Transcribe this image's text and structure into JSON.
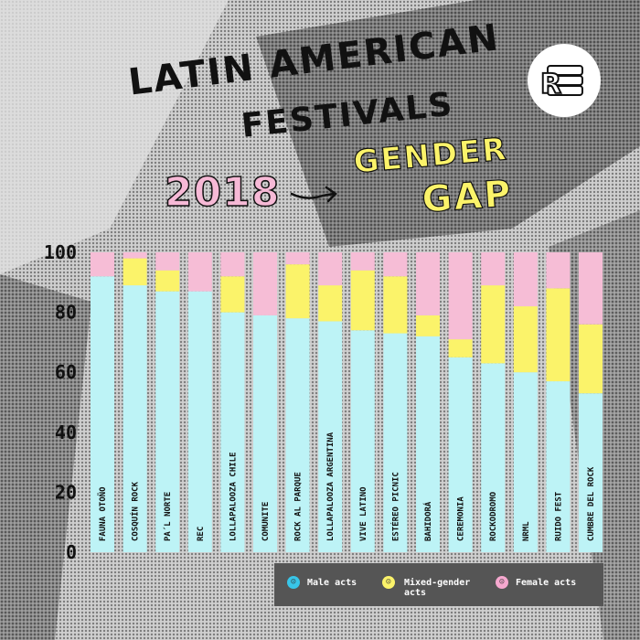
{
  "title": {
    "line1": "LATIN AMERICAN",
    "line2": "FESTIVALS",
    "year": "2018",
    "subtitle_line1": "GENDER",
    "subtitle_line2": "GAP"
  },
  "logo": {
    "icon": "r-sponge-logo-icon",
    "letter": "R"
  },
  "colors": {
    "male": "#bdf3f6",
    "mixed": "#fbf36a",
    "female": "#f6bdd6",
    "legend_bg": "#555555"
  },
  "legend": {
    "male": "Male acts",
    "mixed_line1": "Mixed-gender",
    "mixed_line2": "acts",
    "female": "Female acts"
  },
  "chart_data": {
    "type": "bar",
    "stacked": true,
    "categories": [
      "FAUNA OTOÑO",
      "COSQUÍN ROCK",
      "PA´L NORTE",
      "REC",
      "LOLLAPALOOZA CHILE",
      "COMUNITE",
      "ROCK AL PARQUE",
      "LOLLAPALOOZA ARGENTINA",
      "VIVE LATINO",
      "ESTÉREO PICNIC",
      "BAHIDORÁ",
      "CEREMONIA",
      "ROCKODROMO",
      "NRML",
      "RUIDO FEST",
      "CUMBRE DEL ROCK"
    ],
    "series": [
      {
        "name": "Male acts",
        "values": [
          92,
          89,
          87,
          87,
          80,
          79,
          78,
          77,
          74,
          73,
          72,
          65,
          63,
          60,
          57,
          53
        ]
      },
      {
        "name": "Mixed-gender acts",
        "values": [
          0,
          9,
          7,
          0,
          12,
          0,
          18,
          12,
          20,
          19,
          7,
          6,
          26,
          22,
          31,
          23
        ]
      },
      {
        "name": "Female acts",
        "values": [
          8,
          2,
          6,
          13,
          8,
          21,
          4,
          11,
          6,
          8,
          21,
          29,
          11,
          18,
          12,
          24
        ]
      }
    ],
    "yticks": [
      "0",
      "20",
      "40",
      "60",
      "80",
      "100"
    ],
    "ylim": [
      0,
      100
    ],
    "legend_position": "bottom-right",
    "grid": false
  }
}
